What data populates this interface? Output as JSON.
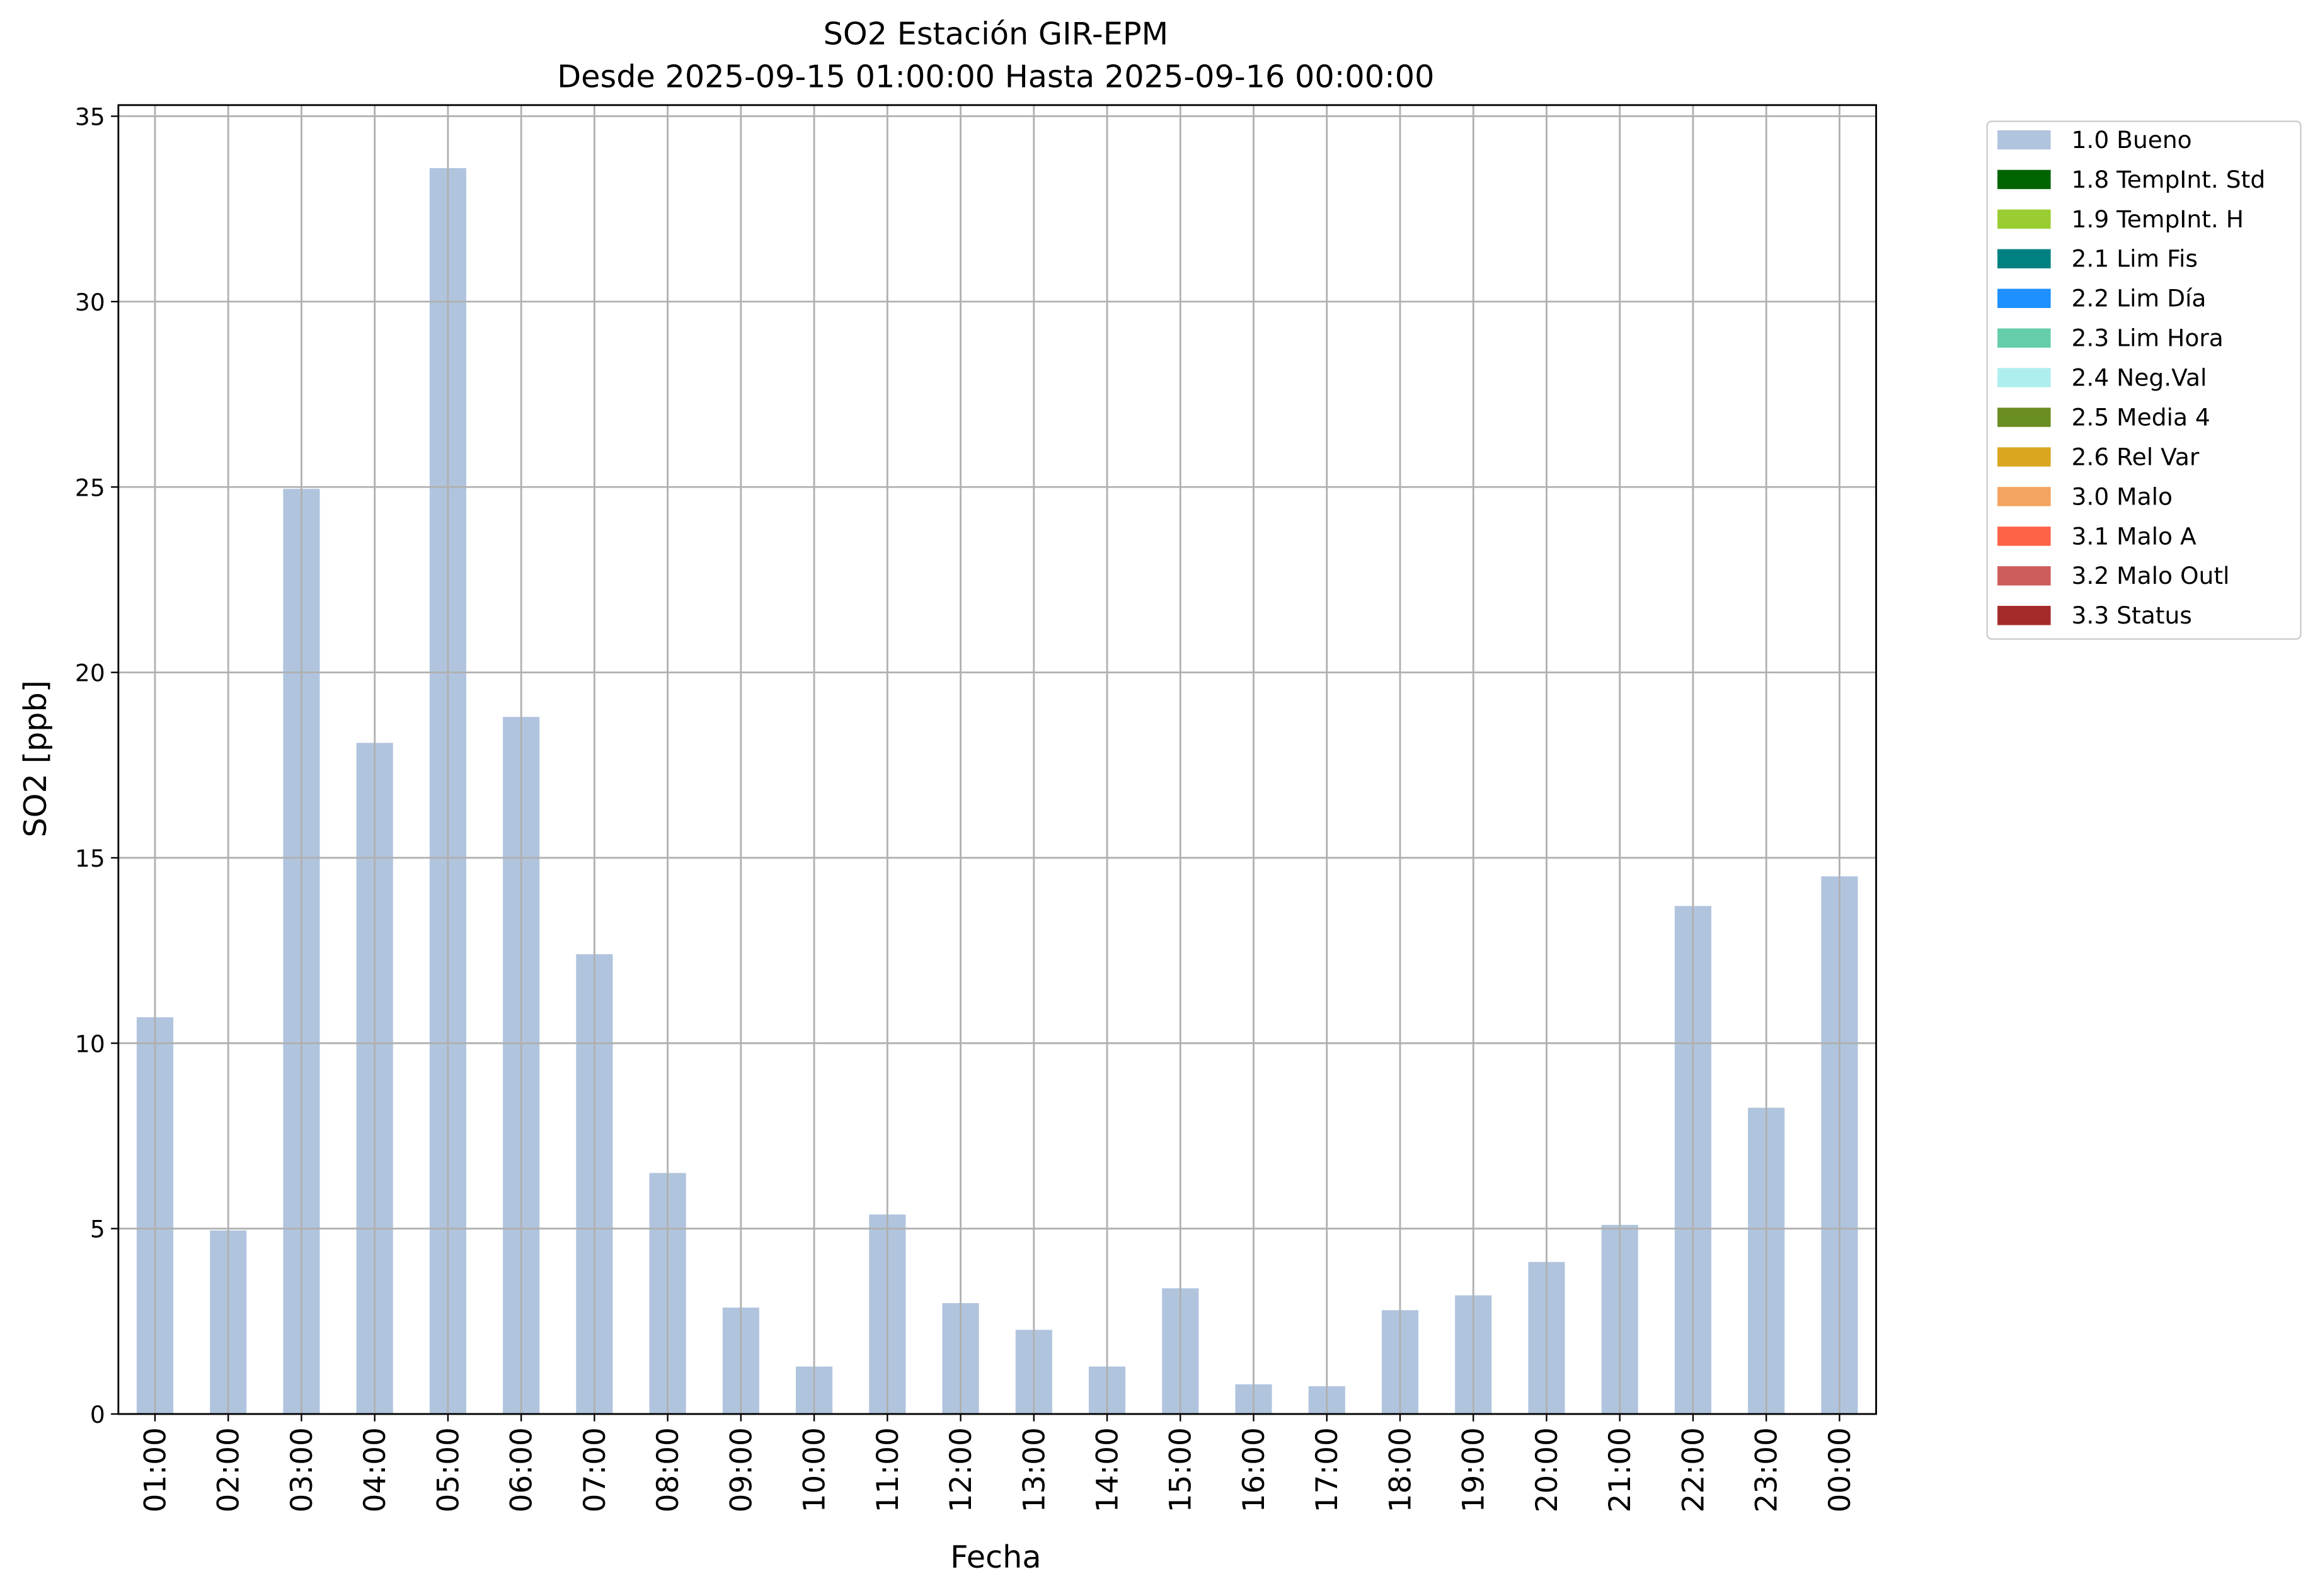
{
  "chart_data": {
    "type": "bar",
    "stacked": true,
    "title": "SO2 Estación GIR-EPM",
    "subtitle": "Desde 2025-09-15 01:00:00 Hasta 2025-09-16 00:00:00",
    "x_label": "Fecha",
    "y_label": "SO2 [ppb]",
    "categories": [
      "01:00",
      "02:00",
      "03:00",
      "04:00",
      "05:00",
      "06:00",
      "07:00",
      "08:00",
      "09:00",
      "10:00",
      "11:00",
      "12:00",
      "13:00",
      "14:00",
      "15:00",
      "16:00",
      "17:00",
      "18:00",
      "19:00",
      "20:00",
      "21:00",
      "22:00",
      "23:00",
      "00:00"
    ],
    "series": [
      {
        "name": "1.0 Bueno",
        "color": "#b0c4de",
        "values": [
          10.7,
          4.95,
          24.95,
          18.1,
          33.6,
          18.8,
          12.4,
          6.5,
          2.87,
          1.28,
          5.38,
          2.99,
          2.27,
          1.28,
          3.39,
          0.8,
          0.75,
          2.8,
          3.2,
          4.1,
          5.1,
          13.7,
          8.26,
          14.5
        ]
      },
      {
        "name": "1.8 TempInt. Std",
        "color": "#006400",
        "values": [
          null,
          null,
          null,
          null,
          null,
          null,
          null,
          null,
          null,
          null,
          null,
          null,
          null,
          null,
          null,
          null,
          null,
          null,
          null,
          null,
          null,
          null,
          null,
          null
        ]
      },
      {
        "name": "1.9 TempInt. H",
        "color": "#9acd32",
        "values": [
          null,
          null,
          null,
          null,
          null,
          null,
          null,
          null,
          null,
          null,
          null,
          null,
          null,
          null,
          null,
          null,
          null,
          null,
          null,
          null,
          null,
          null,
          null,
          null
        ]
      },
      {
        "name": "2.1 Lim Fis",
        "color": "#008080",
        "values": [
          null,
          null,
          null,
          null,
          null,
          null,
          null,
          null,
          null,
          null,
          null,
          null,
          null,
          null,
          null,
          null,
          null,
          null,
          null,
          null,
          null,
          null,
          null,
          null
        ]
      },
      {
        "name": "2.2 Lim Día",
        "color": "#1e90ff",
        "values": [
          null,
          null,
          null,
          null,
          null,
          null,
          null,
          null,
          null,
          null,
          null,
          null,
          null,
          null,
          null,
          null,
          null,
          null,
          null,
          null,
          null,
          null,
          null,
          null
        ]
      },
      {
        "name": "2.3 Lim Hora",
        "color": "#66cdaa",
        "values": [
          null,
          null,
          null,
          null,
          null,
          null,
          null,
          null,
          null,
          null,
          null,
          null,
          null,
          null,
          null,
          null,
          null,
          null,
          null,
          null,
          null,
          null,
          null,
          null
        ]
      },
      {
        "name": "2.4 Neg.Val",
        "color": "#afeeee",
        "values": [
          null,
          null,
          null,
          null,
          null,
          null,
          null,
          null,
          null,
          null,
          null,
          null,
          null,
          null,
          null,
          null,
          null,
          null,
          null,
          null,
          null,
          null,
          null,
          null
        ]
      },
      {
        "name": "2.5 Media 4",
        "color": "#6b8e23",
        "values": [
          null,
          null,
          null,
          null,
          null,
          null,
          null,
          null,
          null,
          null,
          null,
          null,
          null,
          null,
          null,
          null,
          null,
          null,
          null,
          null,
          null,
          null,
          null,
          null
        ]
      },
      {
        "name": "2.6 Rel Var",
        "color": "#daa520",
        "values": [
          null,
          null,
          null,
          null,
          null,
          null,
          null,
          null,
          null,
          null,
          null,
          null,
          null,
          null,
          null,
          null,
          null,
          null,
          null,
          null,
          null,
          null,
          null,
          null
        ]
      },
      {
        "name": "3.0 Malo",
        "color": "#f4a460",
        "values": [
          null,
          null,
          null,
          null,
          null,
          null,
          null,
          null,
          null,
          null,
          null,
          null,
          null,
          null,
          null,
          null,
          null,
          null,
          null,
          null,
          null,
          null,
          null,
          null
        ]
      },
      {
        "name": "3.1 Malo A",
        "color": "#ff6347",
        "values": [
          null,
          null,
          null,
          null,
          null,
          null,
          null,
          null,
          null,
          null,
          null,
          null,
          null,
          null,
          null,
          null,
          null,
          null,
          null,
          null,
          null,
          null,
          null,
          null
        ]
      },
      {
        "name": "3.2 Malo Outl",
        "color": "#cd5c5c",
        "values": [
          null,
          null,
          null,
          null,
          null,
          null,
          null,
          null,
          null,
          null,
          null,
          null,
          null,
          null,
          null,
          null,
          null,
          null,
          null,
          null,
          null,
          null,
          null,
          null
        ]
      },
      {
        "name": "3.3 Status",
        "color": "#a52a2a",
        "values": [
          null,
          null,
          null,
          null,
          null,
          null,
          null,
          null,
          null,
          null,
          null,
          null,
          null,
          null,
          null,
          null,
          null,
          null,
          null,
          null,
          null,
          null,
          null,
          null
        ]
      }
    ],
    "ylim": [
      0,
      35.3
    ],
    "yticks": [
      0,
      5,
      10,
      15,
      20,
      25,
      30,
      35
    ],
    "grid": true,
    "legend": "outside-upper-right"
  }
}
